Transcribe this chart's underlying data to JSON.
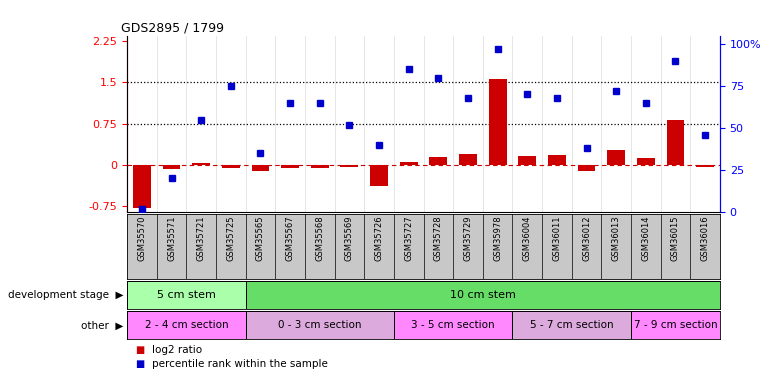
{
  "title": "GDS2895 / 1799",
  "samples": [
    "GSM35570",
    "GSM35571",
    "GSM35721",
    "GSM35725",
    "GSM35565",
    "GSM35567",
    "GSM35568",
    "GSM35569",
    "GSM35726",
    "GSM35727",
    "GSM35728",
    "GSM35729",
    "GSM35978",
    "GSM36004",
    "GSM36011",
    "GSM36012",
    "GSM36013",
    "GSM36014",
    "GSM36015",
    "GSM36016"
  ],
  "log2_ratio": [
    -0.78,
    -0.07,
    0.04,
    -0.05,
    -0.1,
    -0.05,
    -0.05,
    -0.03,
    -0.38,
    0.06,
    0.15,
    0.2,
    1.57,
    0.17,
    0.19,
    -0.1,
    0.27,
    0.12,
    0.82,
    -0.04
  ],
  "percentile": [
    2,
    20,
    55,
    75,
    35,
    65,
    65,
    52,
    40,
    85,
    80,
    68,
    97,
    70,
    68,
    38,
    72,
    65,
    90,
    46
  ],
  "ylim_left": [
    -0.85,
    2.35
  ],
  "ylim_right": [
    0,
    105
  ],
  "yticks_left": [
    -0.75,
    0,
    0.75,
    1.5,
    2.25
  ],
  "yticks_right": [
    0,
    25,
    50,
    75,
    100
  ],
  "ytick_labels_right": [
    "0",
    "25",
    "50",
    "75",
    "100%"
  ],
  "hlines": [
    0.75,
    1.5
  ],
  "dev_stage_groups": [
    {
      "label": "5 cm stem",
      "start": 0,
      "end": 3,
      "color": "#aaffaa"
    },
    {
      "label": "10 cm stem",
      "start": 4,
      "end": 19,
      "color": "#66dd66"
    }
  ],
  "other_groups": [
    {
      "label": "2 - 4 cm section",
      "start": 0,
      "end": 3,
      "color": "#ff88ff"
    },
    {
      "label": "0 - 3 cm section",
      "start": 4,
      "end": 8,
      "color": "#ddaadd"
    },
    {
      "label": "3 - 5 cm section",
      "start": 9,
      "end": 12,
      "color": "#ff88ff"
    },
    {
      "label": "5 - 7 cm section",
      "start": 13,
      "end": 16,
      "color": "#ddaadd"
    },
    {
      "label": "7 - 9 cm section",
      "start": 17,
      "end": 19,
      "color": "#ff88ff"
    }
  ],
  "bar_color": "#cc0000",
  "square_color": "#0000cc",
  "dashed_line_color": "#cc0000",
  "hline_color": "#000000",
  "background_color": "#ffffff",
  "tick_area_color": "#c8c8c8"
}
